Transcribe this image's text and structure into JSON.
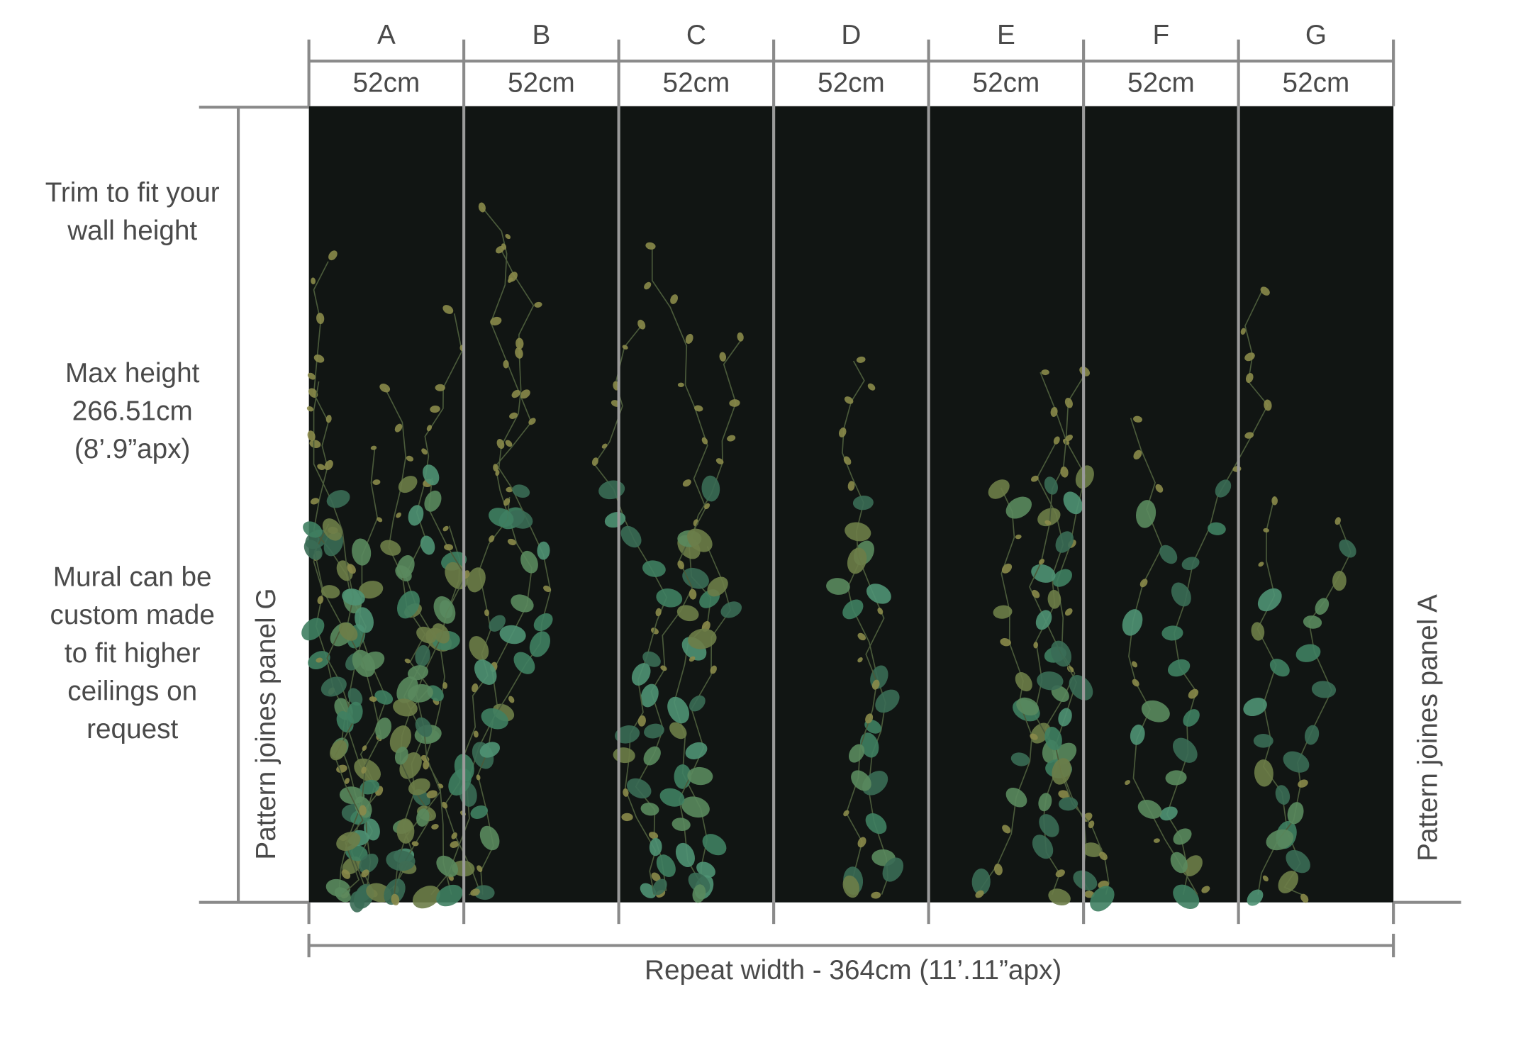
{
  "panels": [
    {
      "label": "A",
      "width": "52cm"
    },
    {
      "label": "B",
      "width": "52cm"
    },
    {
      "label": "C",
      "width": "52cm"
    },
    {
      "label": "D",
      "width": "52cm"
    },
    {
      "label": "E",
      "width": "52cm"
    },
    {
      "label": "F",
      "width": "52cm"
    },
    {
      "label": "G",
      "width": "52cm"
    }
  ],
  "notes": [
    [
      "Trim to fit your",
      "wall height"
    ],
    [
      "Max height",
      "266.51cm",
      "(8’.9”apx)"
    ],
    [
      "Mural can be",
      "custom made",
      "to fit higher",
      "ceilings on",
      "request"
    ]
  ],
  "left_label": "Pattern joines panel G",
  "right_label": "Pattern joines panel A",
  "repeat_width": "Repeat width - 364cm  (11’.11”apx)"
}
